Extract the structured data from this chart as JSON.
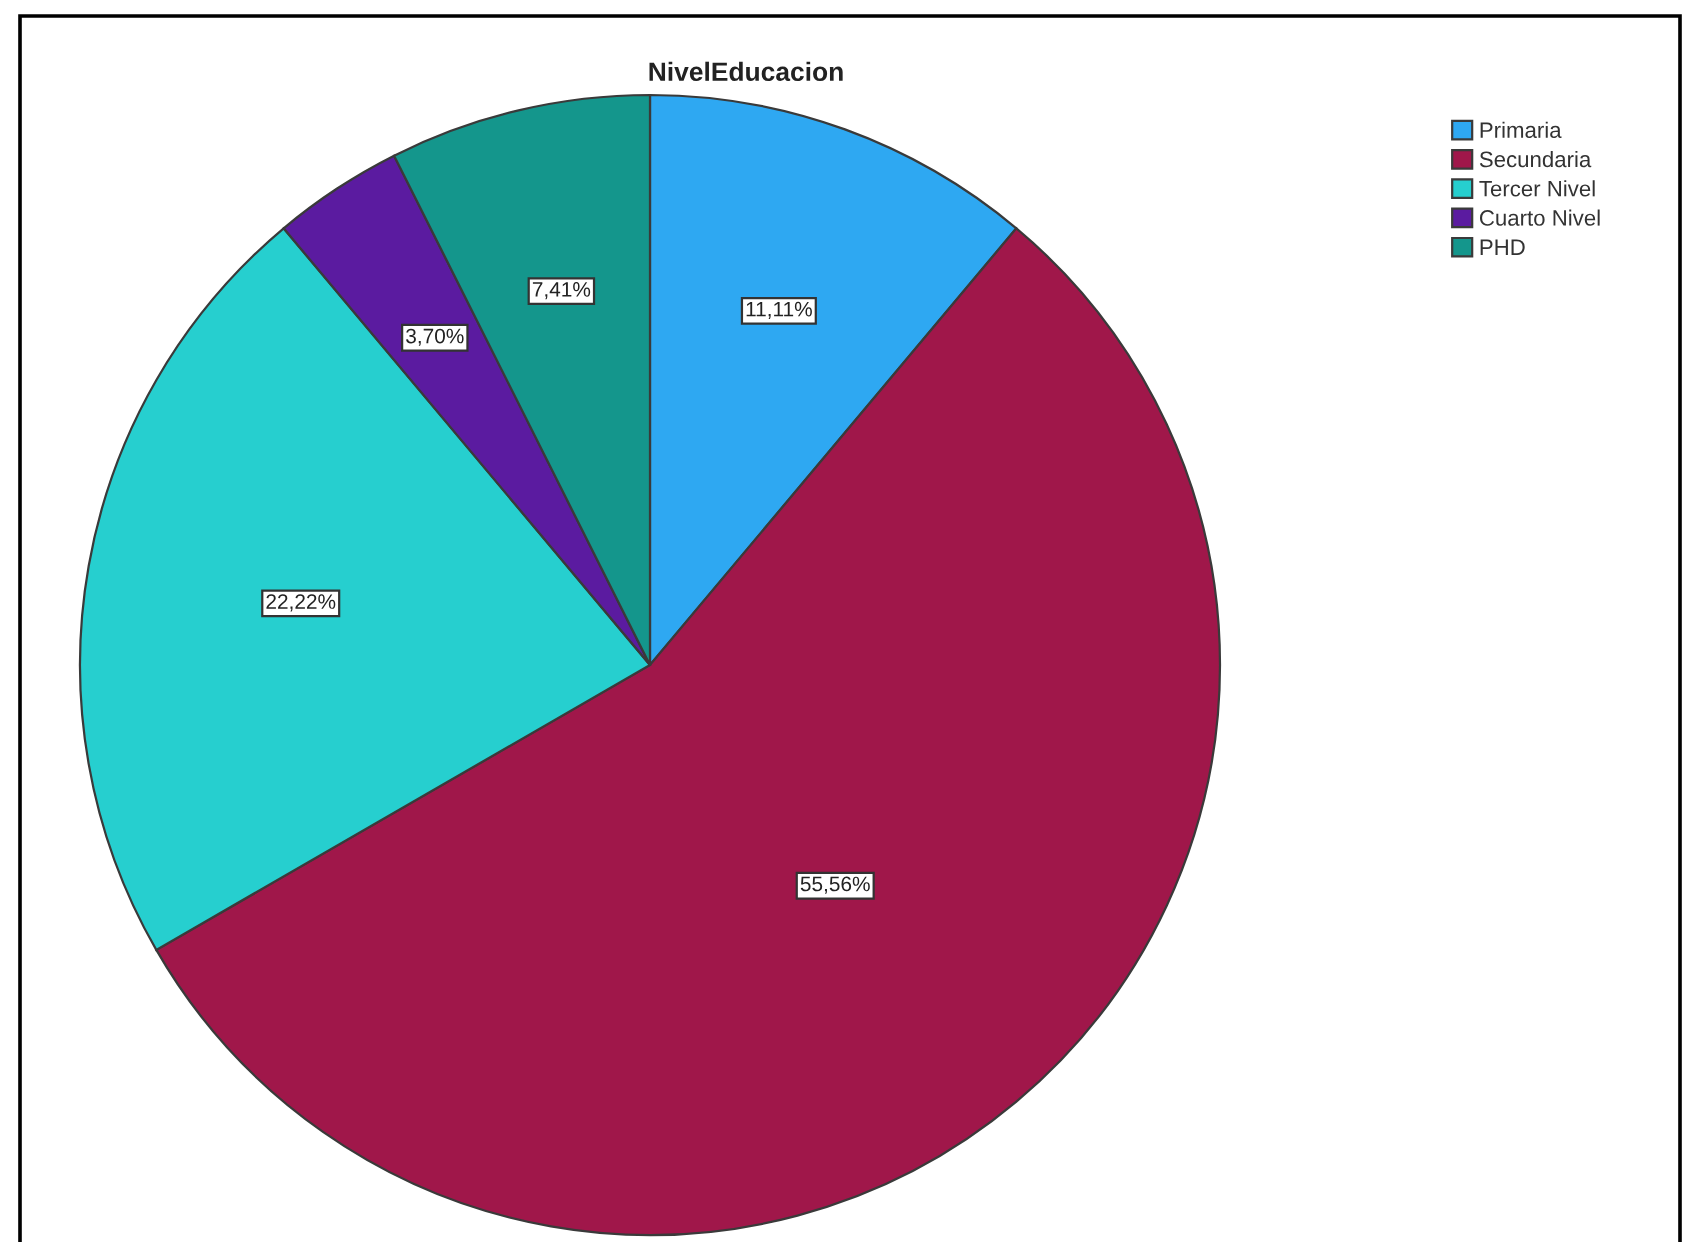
{
  "chart_data": {
    "type": "pie",
    "title": "NivelEducacion",
    "categories": [
      "Primaria",
      "Secundaria",
      "Tercer Nivel",
      "Cuarto Nivel",
      "PHD"
    ],
    "values": [
      11.11,
      55.56,
      22.22,
      3.7,
      7.41
    ],
    "colors": [
      "#2ea8f2",
      "#a0174a",
      "#26cfcf",
      "#5b1ba0",
      "#14968c"
    ],
    "value_labels": [
      "11,11%",
      "55,56%",
      "22,22%",
      "3,70%",
      "7,41%"
    ],
    "legend": "top right"
  }
}
